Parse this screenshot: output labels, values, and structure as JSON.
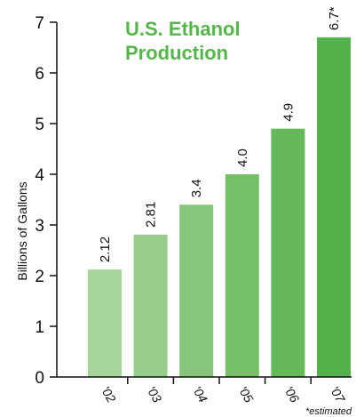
{
  "chart_data": {
    "type": "bar",
    "title_lines": [
      "U.S. Ethanol",
      "Production"
    ],
    "xlabel": "",
    "ylabel": "Billions of Gallons",
    "categories": [
      "'02",
      "'03",
      "'04",
      "'05",
      "'06",
      "'07"
    ],
    "values": [
      2.12,
      2.81,
      3.4,
      4.0,
      4.9,
      6.7
    ],
    "value_labels": [
      "2.12",
      "2.81",
      "3.4",
      "4.0",
      "4.9",
      "6.7*"
    ],
    "ylim": [
      0,
      7
    ],
    "yticks": [
      "0",
      "1",
      "2",
      "3",
      "4",
      "5",
      "6",
      "7"
    ],
    "grid": false,
    "legend": "none",
    "footnote": "*estimated",
    "colors": {
      "title": "#55b74a",
      "bars": [
        "#a6d49b",
        "#97cd8a",
        "#87c67a",
        "#76bf69",
        "#66b95b",
        "#55b14b"
      ],
      "axis": "#111111"
    }
  }
}
